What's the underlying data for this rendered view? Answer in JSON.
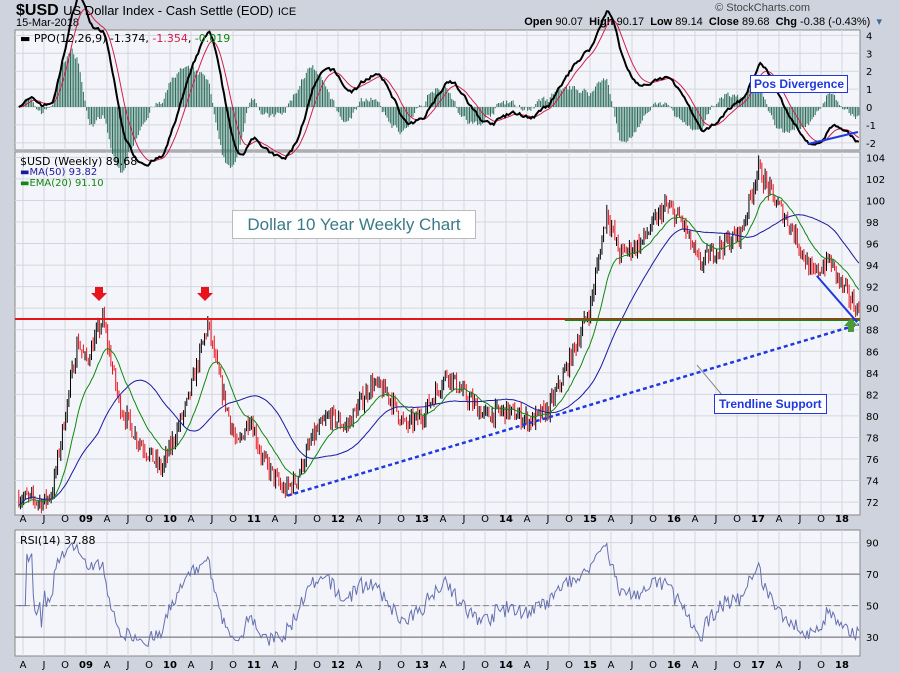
{
  "header": {
    "symbol": "$USD",
    "name": "US Dollar Index - Cash Settle (EOD)",
    "exchange": "ICE",
    "date": "15-Mar-2018",
    "copyright": "© StockCharts.com",
    "quote": [
      {
        "k": "Open",
        "v": "90.07"
      },
      {
        "k": "High",
        "v": "90.17"
      },
      {
        "k": "Low",
        "v": "89.14"
      },
      {
        "k": "Close",
        "v": "89.68"
      },
      {
        "k": "Chg",
        "v": "-0.38 (-0.43%)"
      }
    ]
  },
  "colors": {
    "bg": "#cfd3de",
    "panel": "#f4f5fa",
    "grid": "#d3d6df",
    "up": "#000000",
    "down": "#e8141c",
    "ma": "#1a1aa0",
    "ema": "#118811",
    "ppo": "#000000",
    "signal": "#d0204a",
    "hist": "#2c6e5a",
    "annot": "#1f38e0",
    "resist": "#e8141c",
    "support": "#118811"
  },
  "chart_data": [
    {
      "type": "line",
      "title": "PPO(12,26,9)",
      "legend": {
        "ppo": "-1.374",
        "signal": "-1.354",
        "hist": "-0.019"
      },
      "yticks": [
        4,
        3,
        2,
        1,
        0,
        -1,
        -2
      ],
      "ylim": [
        -2.4,
        4.3
      ],
      "annotation": "Pos Divergence"
    },
    {
      "type": "candlestick",
      "title": "$USD (Weekly) 89.68",
      "legend": {
        "price": "$USD (Weekly) 89.68",
        "ma": "MA(50) 93.82",
        "ema": "EMA(20) 91.10"
      },
      "yticks": [
        104,
        102,
        100,
        98,
        96,
        94,
        92,
        90,
        88,
        86,
        84,
        82,
        80,
        78,
        76,
        74,
        72
      ],
      "ylim": [
        70.8,
        104.5
      ],
      "waypoints": [
        [
          2008.2,
          72.5
        ],
        [
          2008.5,
          72
        ],
        [
          2008.6,
          73
        ],
        [
          2008.75,
          80
        ],
        [
          2008.9,
          87
        ],
        [
          2009.0,
          85
        ],
        [
          2009.2,
          89
        ],
        [
          2009.4,
          81
        ],
        [
          2009.6,
          78
        ],
        [
          2009.9,
          75
        ],
        [
          2010.0,
          77
        ],
        [
          2010.2,
          81
        ],
        [
          2010.45,
          88.5
        ],
        [
          2010.6,
          83
        ],
        [
          2010.8,
          77
        ],
        [
          2010.95,
          80
        ],
        [
          2011.1,
          76
        ],
        [
          2011.35,
          73
        ],
        [
          2011.5,
          74
        ],
        [
          2011.7,
          78
        ],
        [
          2011.9,
          80
        ],
        [
          2012.1,
          79
        ],
        [
          2012.4,
          83
        ],
        [
          2012.6,
          82
        ],
        [
          2012.8,
          79
        ],
        [
          2013.0,
          80
        ],
        [
          2013.3,
          84
        ],
        [
          2013.5,
          82
        ],
        [
          2013.75,
          80
        ],
        [
          2014.0,
          80.5
        ],
        [
          2014.3,
          79.5
        ],
        [
          2014.5,
          80.5
        ],
        [
          2014.7,
          84
        ],
        [
          2015.0,
          90
        ],
        [
          2015.2,
          99
        ],
        [
          2015.35,
          95
        ],
        [
          2015.6,
          96
        ],
        [
          2015.9,
          99.5
        ],
        [
          2016.1,
          98
        ],
        [
          2016.3,
          94
        ],
        [
          2016.5,
          95.5
        ],
        [
          2016.8,
          97
        ],
        [
          2017.0,
          103
        ],
        [
          2017.2,
          100
        ],
        [
          2017.4,
          97.5
        ],
        [
          2017.65,
          93
        ],
        [
          2017.85,
          94.5
        ],
        [
          2018.0,
          92
        ],
        [
          2018.2,
          89.7
        ]
      ],
      "resistance": 89,
      "support": 89,
      "trendline": [
        [
          2011.4,
          72.6
        ],
        [
          2018.2,
          88.5
        ]
      ],
      "short_trend": [
        [
          2017.7,
          93
        ],
        [
          2018.18,
          88.7
        ]
      ],
      "title_box": "Dollar 10 Year Weekly Chart",
      "annotation": "Trendline Support"
    },
    {
      "type": "line",
      "title": "RSI(14) 37.88",
      "yticks": [
        90,
        70,
        50,
        30
      ],
      "ylim": [
        18,
        98
      ],
      "levels": [
        70,
        30
      ]
    }
  ],
  "xaxis": [
    "A",
    "J",
    "O",
    "09",
    "A",
    "J",
    "O",
    "10",
    "A",
    "J",
    "O",
    "11",
    "A",
    "J",
    "O",
    "12",
    "A",
    "J",
    "O",
    "13",
    "A",
    "J",
    "O",
    "14",
    "A",
    "J",
    "O",
    "15",
    "A",
    "J",
    "O",
    "16",
    "A",
    "J",
    "O",
    "17",
    "A",
    "J",
    "O",
    "18"
  ]
}
